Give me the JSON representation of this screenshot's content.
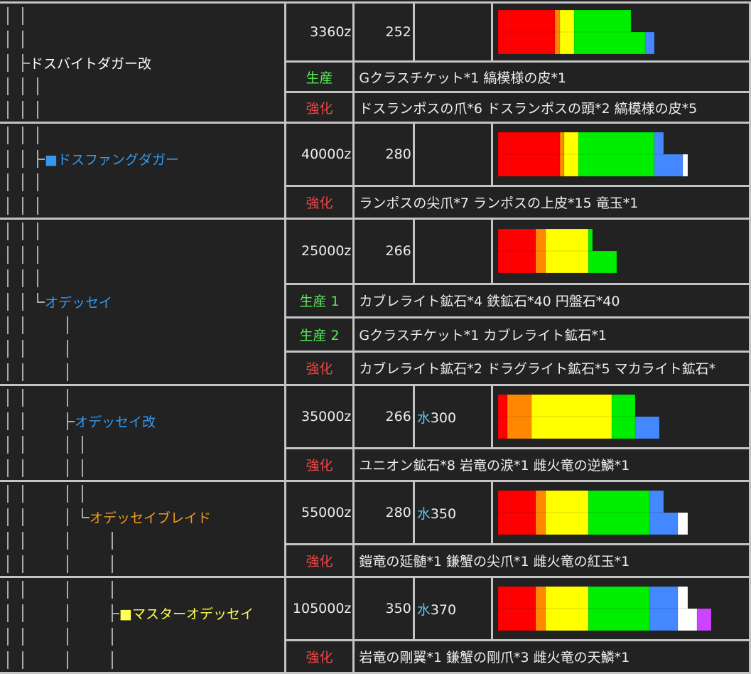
{
  "sharpness_colors": {
    "red": "#ff0000",
    "orange": "#ff8800",
    "yellow": "#ffff00",
    "green": "#00ee00",
    "blue": "#4488ff",
    "white": "#ffffff",
    "purple": "#cc44ff"
  },
  "weapons": [
    {
      "tree": [
        "││",
        "││",
        "│├",
        "│││",
        "│││"
      ],
      "name_line": 2,
      "name": "ドスバイトダガー改",
      "name_color": "#ffffff",
      "cost": "3360z",
      "attack": "252",
      "element_icon": "",
      "element_value": "",
      "sharpness": [
        [
          [
            "red",
            120
          ],
          [
            "orange",
            10
          ],
          [
            "yellow",
            30
          ],
          [
            "green",
            120
          ]
        ],
        [
          [
            "red",
            120
          ],
          [
            "orange",
            10
          ],
          [
            "yellow",
            30
          ],
          [
            "green",
            150
          ],
          [
            "blue",
            20
          ]
        ]
      ],
      "materials": [
        {
          "label": "生産",
          "type": "create",
          "items": "Gクラスチケット*1 縞模様の皮*1"
        },
        {
          "label": "強化",
          "type": "upgrade",
          "items": "ドスランポスの爪*6 ドスランポスの頭*2 縞模様の皮*5"
        }
      ]
    },
    {
      "tree": [
        "│││",
        "││├",
        "│││",
        "│││"
      ],
      "name_line": 1,
      "name": "■ドスファングダガー",
      "name_color": "#3399ee",
      "cost": "40000z",
      "attack": "280",
      "element_icon": "",
      "element_value": "",
      "sharpness": [
        [
          [
            "red",
            130
          ],
          [
            "orange",
            10
          ],
          [
            "yellow",
            30
          ],
          [
            "green",
            160
          ],
          [
            "blue",
            20
          ]
        ],
        [
          [
            "red",
            130
          ],
          [
            "orange",
            10
          ],
          [
            "yellow",
            30
          ],
          [
            "green",
            160
          ],
          [
            "blue",
            60
          ],
          [
            "white",
            10
          ]
        ]
      ],
      "materials": [
        {
          "label": "強化",
          "type": "upgrade",
          "items": "ランポスの尖爪*7 ランポスの上皮*15 竜玉*1"
        }
      ]
    },
    {
      "tree": [
        "│││",
        "│││",
        "│││",
        "││└",
        "││  │",
        "││  │",
        "││  │"
      ],
      "name_line": 3,
      "name": "オデッセイ",
      "name_color": "#3399ee",
      "cost": "25000z",
      "attack": "266",
      "element_icon": "",
      "element_value": "",
      "sharpness": [
        [
          [
            "red",
            80
          ],
          [
            "orange",
            20
          ],
          [
            "yellow",
            90
          ],
          [
            "green",
            10
          ]
        ],
        [
          [
            "red",
            80
          ],
          [
            "orange",
            20
          ],
          [
            "yellow",
            90
          ],
          [
            "green",
            60
          ]
        ]
      ],
      "materials": [
        {
          "label": "生産 1",
          "type": "create",
          "items": "カブレライト鉱石*4 鉄鉱石*40 円盤石*40"
        },
        {
          "label": "生産 2",
          "type": "create",
          "items": "Gクラスチケット*1 カブレライト鉱石*1"
        },
        {
          "label": "強化",
          "type": "upgrade",
          "items": "カブレライト鉱石*2 ドラグライト鉱石*5 マカライト鉱石*"
        }
      ]
    },
    {
      "tree": [
        "││  │",
        "││  ├",
        "││  ││",
        "││  ││"
      ],
      "name_line": 1,
      "name": "オデッセイ改",
      "name_color": "#3399ee",
      "cost": "35000z",
      "attack": "266",
      "element_icon": "水",
      "element_value": "300",
      "sharpness": [
        [
          [
            "red",
            20
          ],
          [
            "orange",
            50
          ],
          [
            "yellow",
            170
          ],
          [
            "green",
            50
          ]
        ],
        [
          [
            "red",
            20
          ],
          [
            "orange",
            50
          ],
          [
            "yellow",
            170
          ],
          [
            "green",
            50
          ],
          [
            "blue",
            50
          ]
        ]
      ],
      "materials": [
        {
          "label": "強化",
          "type": "upgrade",
          "items": "ユニオン鉱石*8 岩竜の涙*1 雌火竜の逆鱗*1"
        }
      ]
    },
    {
      "tree": [
        "││  ││",
        "││  │└",
        "││  │  │",
        "││  │  │"
      ],
      "name_line": 1,
      "name": "オデッセイブレイド",
      "name_color": "#ee9922",
      "cost": "55000z",
      "attack": "280",
      "element_icon": "水",
      "element_value": "350",
      "sharpness": [
        [
          [
            "red",
            80
          ],
          [
            "orange",
            20
          ],
          [
            "yellow",
            90
          ],
          [
            "green",
            130
          ],
          [
            "blue",
            30
          ]
        ],
        [
          [
            "red",
            80
          ],
          [
            "orange",
            20
          ],
          [
            "yellow",
            90
          ],
          [
            "green",
            130
          ],
          [
            "blue",
            60
          ],
          [
            "white",
            20
          ]
        ]
      ],
      "materials": [
        {
          "label": "強化",
          "type": "upgrade",
          "items": "鎧竜の延髄*1 鎌蟹の尖爪*1 雌火竜の紅玉*1"
        }
      ]
    },
    {
      "tree": [
        "││  │  │",
        "││  │  ├",
        "││  │  │",
        "││  │  │"
      ],
      "name_line": 1,
      "name": "■マスターオデッセイ",
      "name_color": "#ffff55",
      "cost": "105000z",
      "attack": "350",
      "element_icon": "水",
      "element_value": "370",
      "sharpness": [
        [
          [
            "red",
            80
          ],
          [
            "orange",
            20
          ],
          [
            "yellow",
            90
          ],
          [
            "green",
            130
          ],
          [
            "blue",
            60
          ],
          [
            "white",
            20
          ]
        ],
        [
          [
            "red",
            80
          ],
          [
            "orange",
            20
          ],
          [
            "yellow",
            90
          ],
          [
            "green",
            130
          ],
          [
            "blue",
            60
          ],
          [
            "white",
            40
          ],
          [
            "purple",
            30
          ]
        ]
      ],
      "materials": [
        {
          "label": "強化",
          "type": "upgrade",
          "items": "岩竜の剛翼*1 鎌蟹の剛爪*3 雌火竜の天鱗*1"
        }
      ]
    }
  ]
}
